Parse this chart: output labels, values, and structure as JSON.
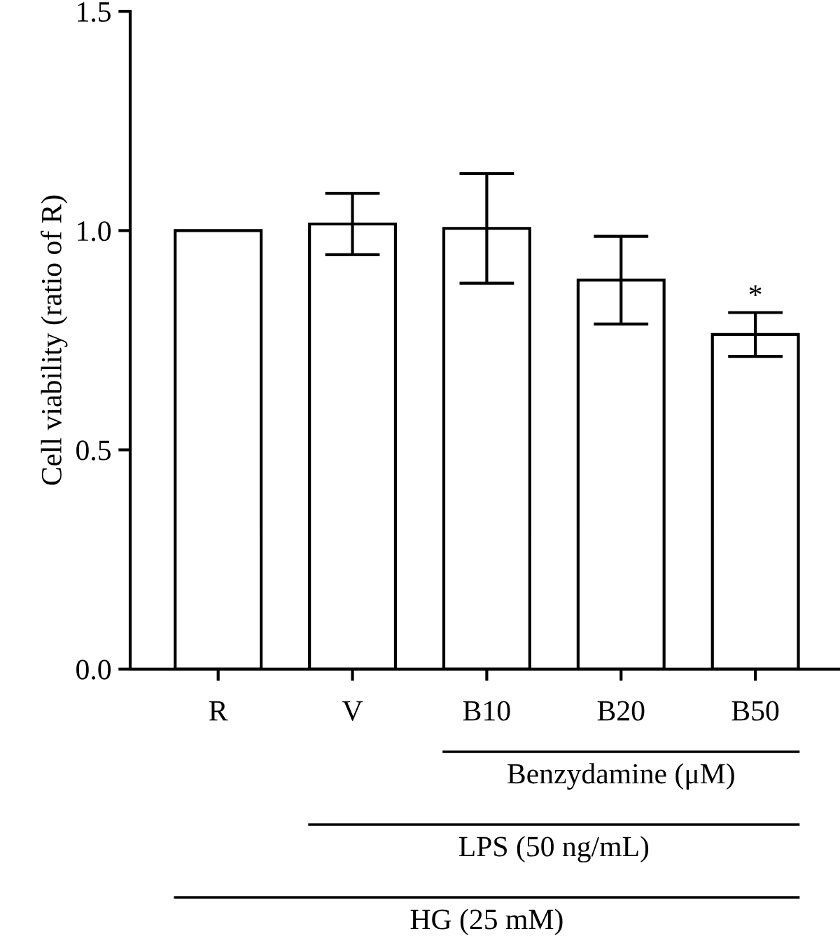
{
  "chart_data": {
    "type": "bar",
    "ylabel": "Cell viability (ratio of R)",
    "categories": [
      "R",
      "V",
      "B10",
      "B20",
      "B50"
    ],
    "values": [
      1.0,
      1.015,
      1.005,
      0.887,
      0.763
    ],
    "errors": [
      null,
      0.07,
      0.125,
      0.1,
      0.05
    ],
    "color": "#ffffff",
    "ylim": [
      0,
      1.5
    ],
    "yticks": [
      {
        "value": 0,
        "label": "0.0"
      },
      {
        "value": 0.5,
        "label": "0.5"
      },
      {
        "value": 1.0,
        "label": "1.0"
      },
      {
        "value": 1.5,
        "label": "1.5"
      }
    ],
    "grid": false,
    "legend": false,
    "annotations": [
      "*",
      "Benzydamine (μM)",
      "LPS (50 ng/mL)",
      "HG (25 mM)"
    ]
  }
}
